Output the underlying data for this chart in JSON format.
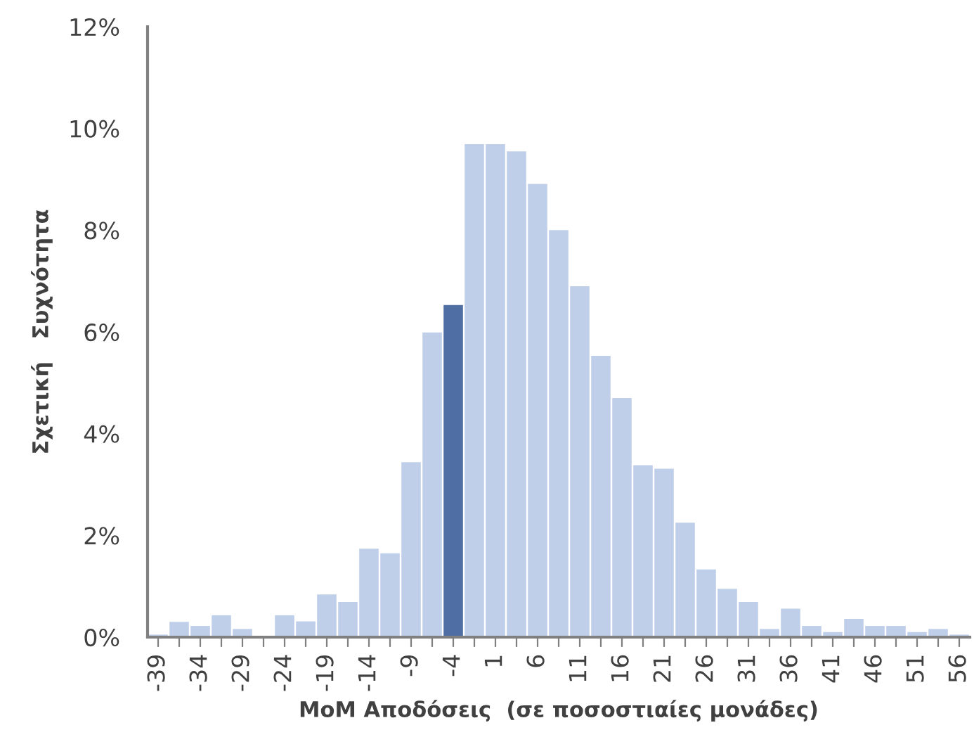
{
  "chart_data": {
    "type": "bar",
    "xlabel": "MoM Αποδόσεις  (σε ποσοστιαίες μονάδες)",
    "ylabel": "Σχετική   Συχνότητα",
    "categories": [
      "-39",
      null,
      "-34",
      null,
      "-29",
      null,
      "-24",
      null,
      "-19",
      null,
      "-14",
      null,
      "-9",
      null,
      "-4",
      null,
      "1",
      null,
      "6",
      null,
      "11",
      null,
      "16",
      null,
      "21",
      null,
      "26",
      null,
      "31",
      null,
      "36",
      null,
      "41",
      null,
      "46",
      null,
      "51",
      null,
      "56"
    ],
    "values": [
      0.05,
      0.3,
      0.22,
      0.43,
      0.16,
      0,
      0.43,
      0.31,
      0.84,
      0.69,
      1.74,
      1.65,
      3.44,
      5.99,
      6.53,
      9.69,
      9.69,
      9.55,
      8.91,
      8.0,
      6.9,
      5.53,
      4.7,
      3.38,
      3.31,
      2.25,
      1.33,
      0.95,
      0.69,
      0.16,
      0.56,
      0.22,
      0.1,
      0.36,
      0.22,
      0.22,
      0.1,
      0.16,
      0.05
    ],
    "colors": [
      "#bfcfea",
      "#bfcfea",
      "#bfcfea",
      "#bfcfea",
      "#bfcfea",
      "#bfcfea",
      "#bfcfea",
      "#bfcfea",
      "#bfcfea",
      "#bfcfea",
      "#bfcfea",
      "#bfcfea",
      "#bfcfea",
      "#bfcfea",
      "#4f6fa4",
      "#bfcfea",
      "#bfcfea",
      "#bfcfea",
      "#bfcfea",
      "#bfcfea",
      "#bfcfea",
      "#bfcfea",
      "#bfcfea",
      "#bfcfea",
      "#bfcfea",
      "#bfcfea",
      "#bfcfea",
      "#bfcfea",
      "#bfcfea",
      "#bfcfea",
      "#bfcfea",
      "#bfcfea",
      "#bfcfea",
      "#bfcfea",
      "#bfcfea",
      "#bfcfea",
      "#bfcfea",
      "#bfcfea",
      "#bfcfea"
    ],
    "ylim": [
      0,
      12
    ],
    "yticks": [
      {
        "value": 0,
        "label": "0%"
      },
      {
        "value": 2,
        "label": "2%"
      },
      {
        "value": 4,
        "label": "4%"
      },
      {
        "value": 6,
        "label": "6%"
      },
      {
        "value": 8,
        "label": "8%"
      },
      {
        "value": 10,
        "label": "10%"
      },
      {
        "value": 12,
        "label": "12%"
      }
    ],
    "grid": false,
    "legend": false
  }
}
